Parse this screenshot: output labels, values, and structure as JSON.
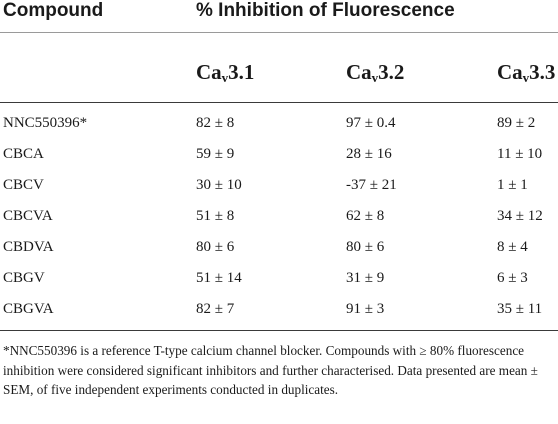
{
  "table": {
    "header": {
      "compound": "Compound",
      "group": "% Inhibition of Fluorescence",
      "channels": [
        {
          "base": "Ca",
          "sub": "v",
          "suffix": "3.1"
        },
        {
          "base": "Ca",
          "sub": "v",
          "suffix": "3.2"
        },
        {
          "base": "Ca",
          "sub": "v",
          "suffix": "3.3"
        }
      ]
    },
    "rows": [
      {
        "compound": "NNC550396*",
        "values": [
          "82 ± 8",
          "97 ± 0.4",
          "89 ± 2"
        ]
      },
      {
        "compound": "CBCA",
        "values": [
          "59 ± 9",
          "28 ± 16",
          "11 ± 10"
        ]
      },
      {
        "compound": "CBCV",
        "values": [
          "30 ± 10",
          "-37 ± 21",
          "1 ± 1"
        ]
      },
      {
        "compound": "CBCVA",
        "values": [
          "51 ± 8",
          "62 ± 8",
          "34 ± 12"
        ]
      },
      {
        "compound": "CBDVA",
        "values": [
          "80 ± 6",
          "80 ± 6",
          "8 ± 4"
        ]
      },
      {
        "compound": "CBGV",
        "values": [
          "51 ± 14",
          "31 ± 9",
          "6 ± 3"
        ]
      },
      {
        "compound": "CBGVA",
        "values": [
          "82 ± 7",
          "91 ± 3",
          "35 ± 11"
        ]
      }
    ],
    "footnote": "*NNC550396 is a reference T-type calcium channel blocker. Compounds with ≥ 80% fluorescence inhibition were considered significant inhibitors and further characterised. Data presented are mean ± SEM, of five independent experiments conducted in duplicates."
  }
}
